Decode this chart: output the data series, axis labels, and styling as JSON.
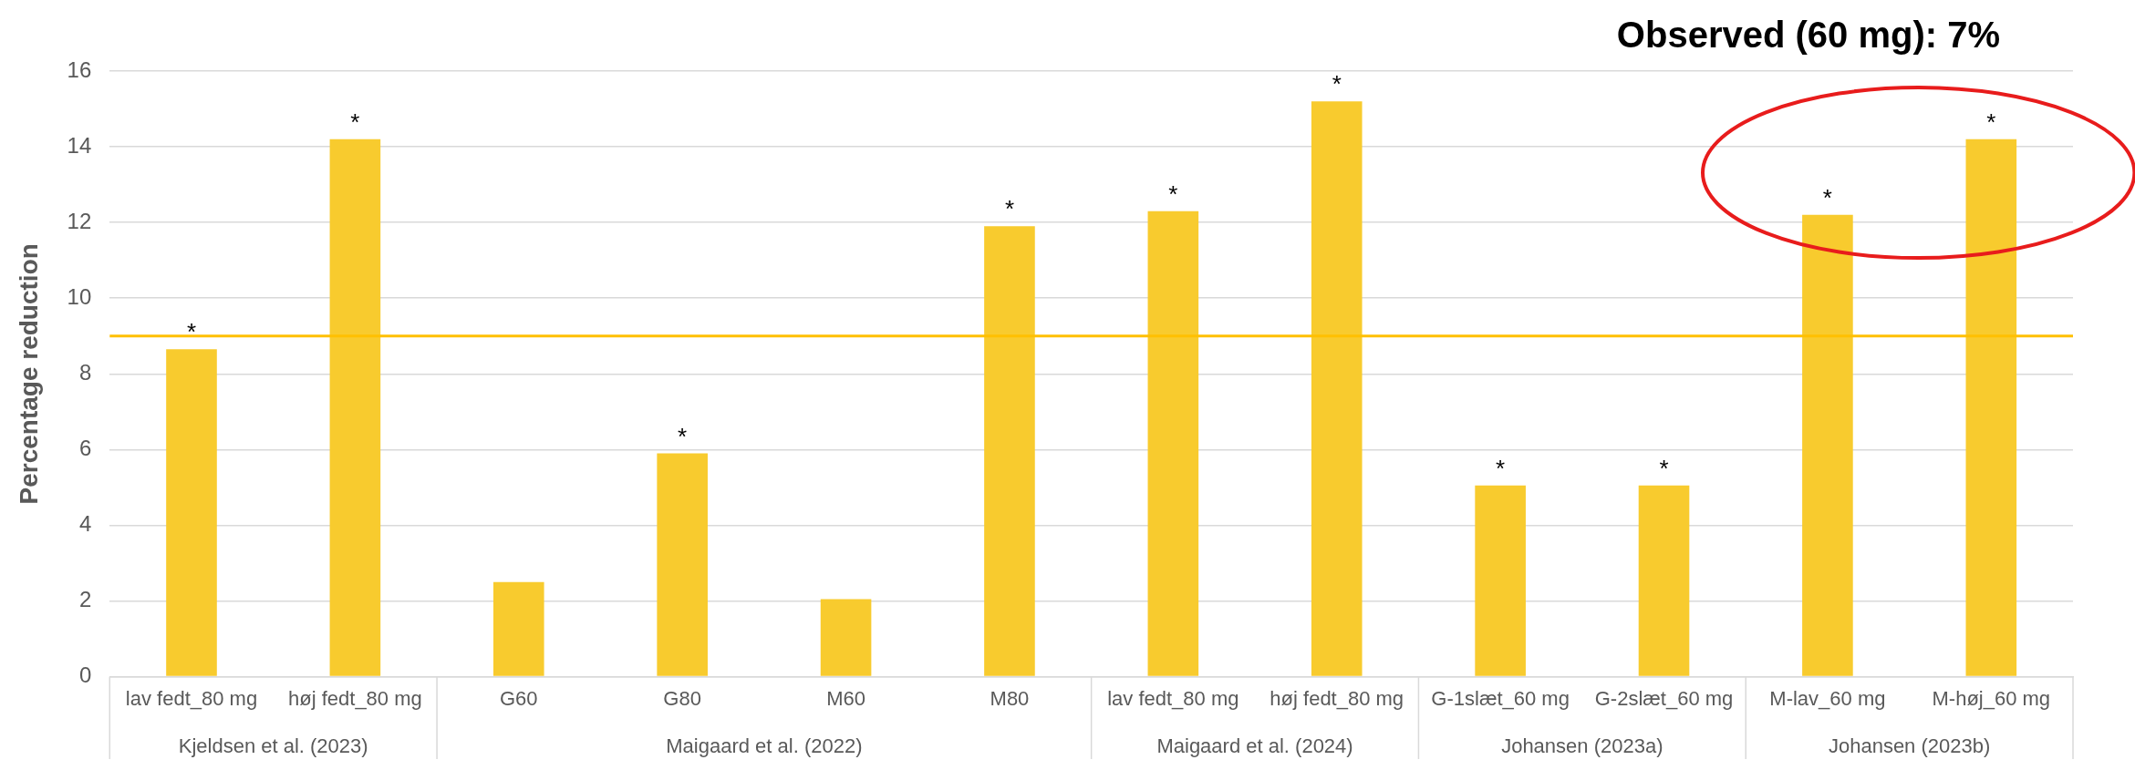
{
  "chart_data": {
    "type": "bar",
    "ylabel": "Percentage reduction",
    "categories": [
      "lav fedt_80 mg",
      "høj fedt_80 mg",
      "G60",
      "G80",
      "M60",
      "M80",
      "lav fedt_80 mg",
      "høj fedt_80 mg",
      "G-1slæt_60 mg",
      "G-2slæt_60 mg",
      "M-lav_60 mg",
      "M-høj_60 mg"
    ],
    "values": [
      8.65,
      14.2,
      2.5,
      5.9,
      2.05,
      11.9,
      12.3,
      15.2,
      5.05,
      5.05,
      12.2,
      14.2
    ],
    "value_labels": [
      "*",
      "*",
      null,
      "*",
      null,
      "*",
      "*",
      "*",
      "*",
      "*",
      "*",
      "*"
    ],
    "color": "#f8cb2e",
    "ylim": [
      0,
      16
    ],
    "yticks": [
      0,
      2,
      4,
      6,
      8,
      10,
      12,
      14,
      16
    ],
    "grid": "y",
    "legend": false,
    "ref_lines": [
      {
        "axis": "y",
        "value": 9,
        "color": "#ffc000"
      }
    ],
    "annotations": [
      "Observed (60 mg): 7%",
      "Kjeldsen et al. (2023)",
      "Maigaard et al. (2022)",
      "Maigaard et al. (2024)",
      "Johansen (2023a)",
      "Johansen (2023b)"
    ]
  }
}
